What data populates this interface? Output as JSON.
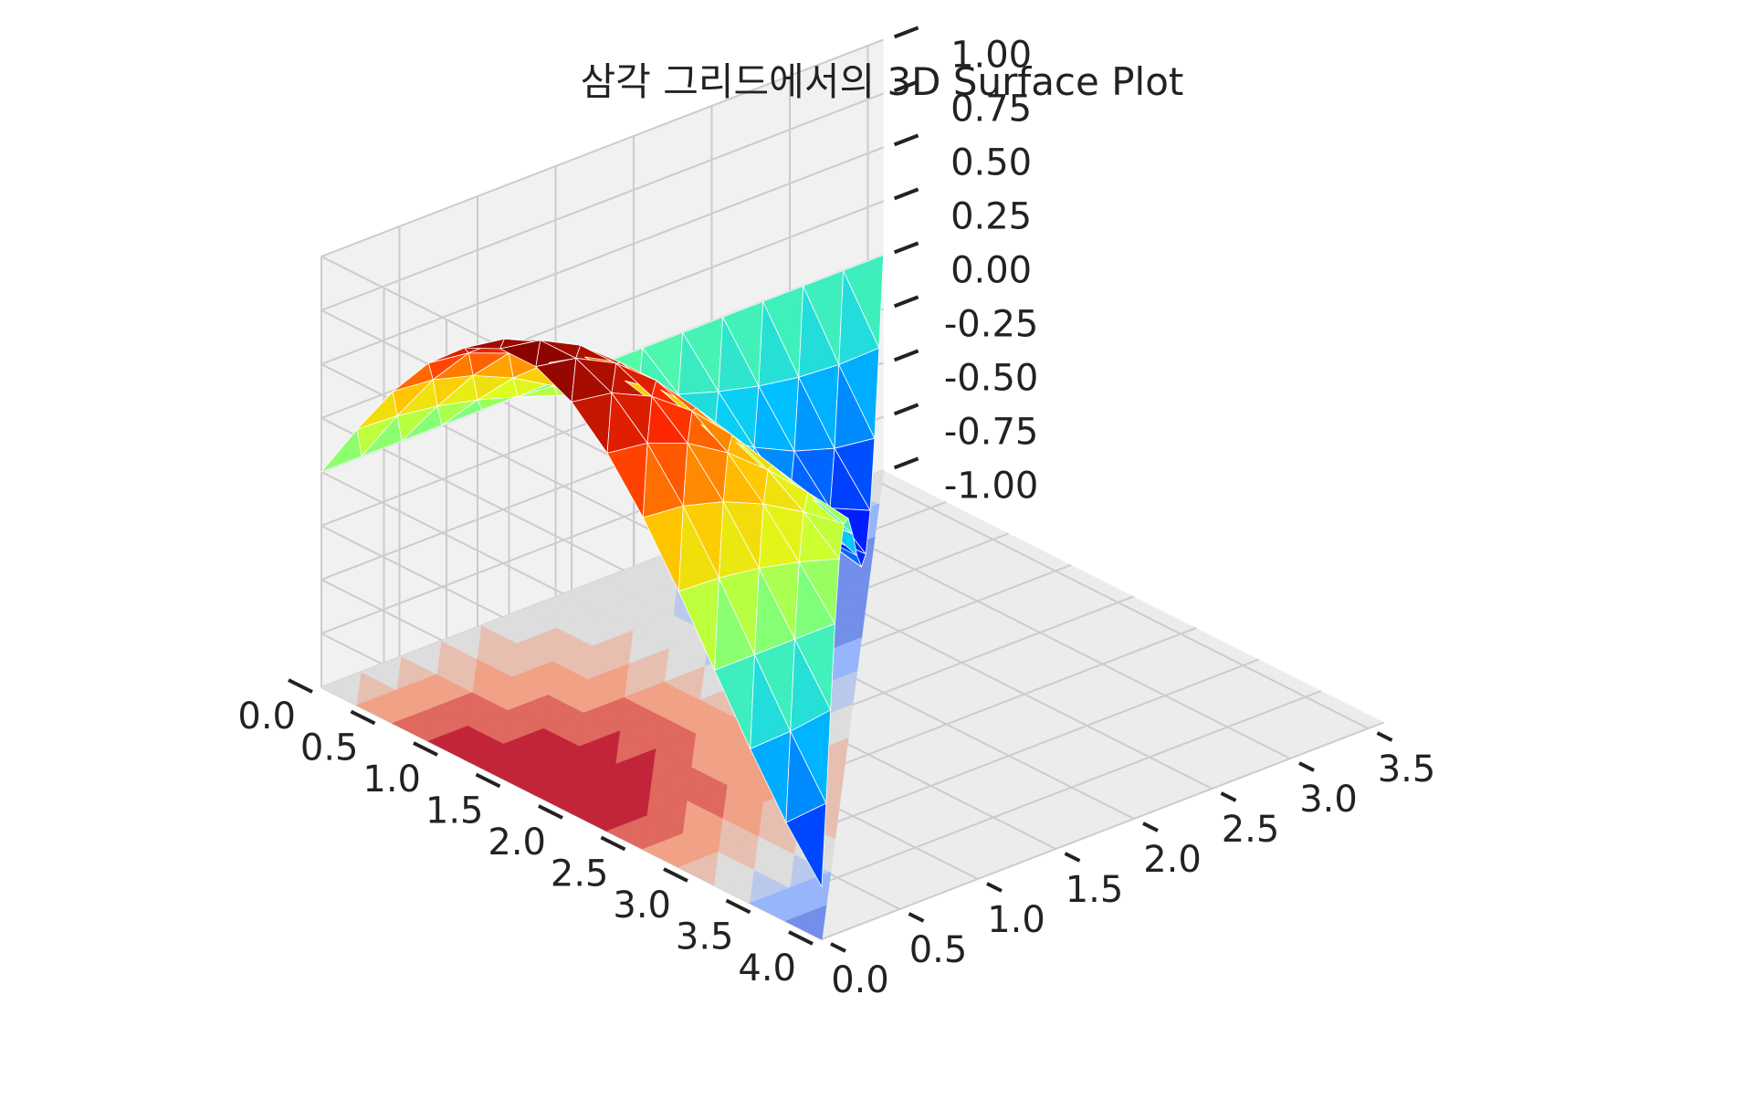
{
  "chart_data": {
    "type": "surface3d",
    "title": "삼각 그리드에서의 3D Surface Plot",
    "xlabel": "",
    "ylabel": "",
    "zlabel": "",
    "x_ticks": [
      "0.0",
      "0.5",
      "1.0",
      "1.5",
      "2.0",
      "2.5",
      "3.0",
      "3.5",
      "4.0"
    ],
    "y_ticks": [
      "0.0",
      "0.5",
      "1.0",
      "1.5",
      "2.0",
      "2.5",
      "3.0",
      "3.5"
    ],
    "z_ticks": [
      "1.00",
      "0.75",
      "0.50",
      "0.25",
      "0.00",
      "-0.25",
      "-0.50",
      "-0.75",
      "-1.00"
    ],
    "xlim": [
      0,
      4
    ],
    "ylim": [
      0,
      3.6
    ],
    "zlim": [
      -1,
      1
    ],
    "surface_function": "sin(x) * cos(y) on triangular grid",
    "surface_colormap": "jet",
    "contour_colormap": "coolwarm",
    "contour_offset": -1,
    "grid": true
  }
}
